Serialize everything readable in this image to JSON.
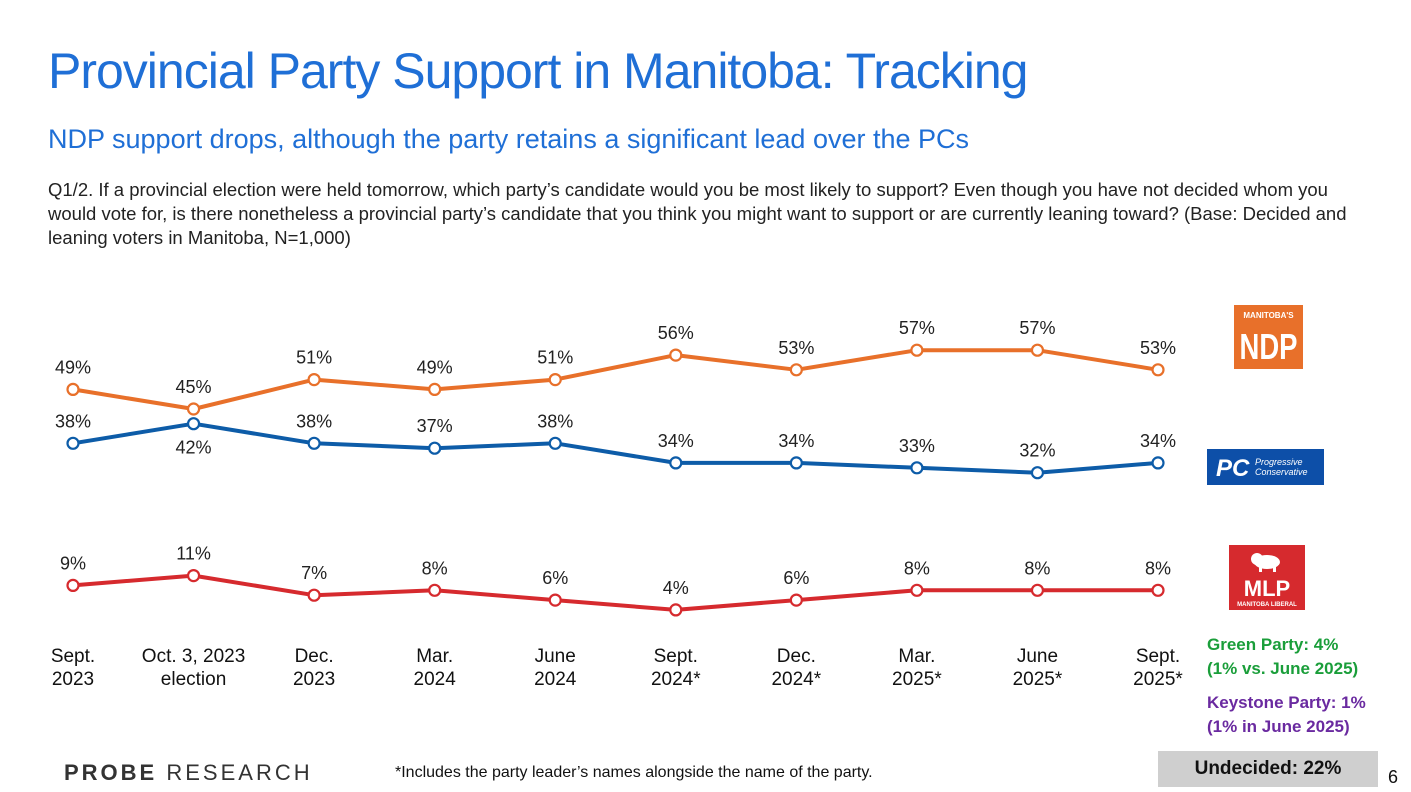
{
  "title": "Provincial Party Support in Manitoba: Tracking",
  "subtitle": "NDP support drops, although the party retains a significant lead over the PCs",
  "question": "Q1/2. If a provincial election were held tomorrow, which party’s candidate would you be most likely to support? Even though you have not decided whom you would vote for, is there nonetheless a provincial party’s candidate that you think you might want to support or are currently leaning toward? (Base: Decided and leaning voters in Manitoba, N=1,000)",
  "chart_data": {
    "type": "line",
    "categories": [
      [
        "Sept.",
        "2023"
      ],
      [
        "Oct. 3, 2023",
        "election"
      ],
      [
        "Dec.",
        "2023"
      ],
      [
        "Mar.",
        "2024"
      ],
      [
        "June",
        "2024"
      ],
      [
        "Sept.",
        "2024*"
      ],
      [
        "Dec.",
        "2024*"
      ],
      [
        "Mar.",
        "2025*"
      ],
      [
        "June",
        "2025*"
      ],
      [
        "Sept.",
        "2025*"
      ]
    ],
    "series": [
      {
        "name": "NDP",
        "color": "#e8702a",
        "values": [
          49,
          45,
          51,
          49,
          51,
          56,
          53,
          57,
          57,
          53
        ]
      },
      {
        "name": "PC",
        "color": "#0d5ca8",
        "values": [
          38,
          42,
          38,
          37,
          38,
          34,
          34,
          33,
          32,
          34
        ]
      },
      {
        "name": "Liberal",
        "color": "#d62a2e",
        "values": [
          9,
          11,
          7,
          8,
          6,
          4,
          6,
          8,
          8,
          8
        ]
      }
    ],
    "value_suffix": "%",
    "ylim": [
      0,
      65
    ],
    "grid": false
  },
  "logos": {
    "ndp": {
      "top": "MANITOBA'S",
      "main": "NDP",
      "color": "#e8702a"
    },
    "pc": {
      "main": "PC",
      "line1": "Progressive",
      "line2": "Conservative",
      "color": "#0d4fa8"
    },
    "mlp": {
      "main": "MLP",
      "sub": "MANITOBA LIBERAL",
      "color": "#d62a2e"
    }
  },
  "others": {
    "green_line1": "Green Party: 4%",
    "green_line2": "(1% vs. June 2025)",
    "keystone_line1": "Keystone Party: 1%",
    "keystone_line2": "(1% in June 2025)",
    "undecided": "Undecided: 22%"
  },
  "footer": {
    "brand_bold": "PROBE",
    "brand_rest": " RESEARCH",
    "footnote": "*Includes the party leader’s names alongside the name of the party.",
    "page_number": "6"
  },
  "colors": {
    "accent": "#1f6fd6",
    "green": "#1a9e3a",
    "purple": "#6a2aa0"
  }
}
